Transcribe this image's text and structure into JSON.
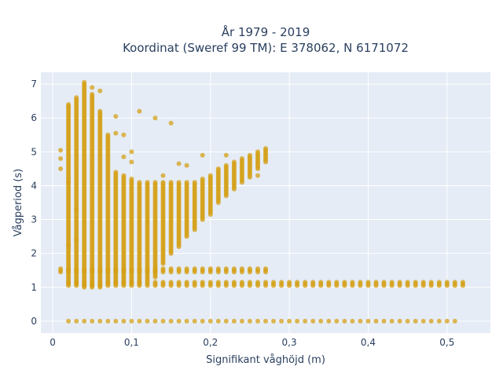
{
  "chart_data": {
    "type": "scatter",
    "title_line1": "År 1979 - 2019",
    "title_line2": "Koordinat (Sweref 99 TM): E 378062, N 6171072",
    "xlabel": "Signifikant våghöjd (m)",
    "ylabel": "Vågperiod (s)",
    "xlim": [
      -0.015,
      0.555
    ],
    "ylim": [
      -0.35,
      7.35
    ],
    "x_ticks": [
      0,
      0.1,
      0.2,
      0.3,
      0.4,
      0.5
    ],
    "x_tick_labels": [
      "0",
      "0,1",
      "0,2",
      "0,3",
      "0,4",
      "0,5"
    ],
    "y_ticks": [
      0,
      1,
      2,
      3,
      4,
      5,
      6,
      7
    ],
    "y_tick_labels": [
      "0",
      "1",
      "2",
      "3",
      "4",
      "5",
      "6",
      "7"
    ],
    "grid": true,
    "marker_color": "#d4a017",
    "plot_bgcolor": "#e5ecf6",
    "point_groups": [
      {
        "note": "zero-period row",
        "x_start": 0.02,
        "x_end": 0.51,
        "x_step": 0.01,
        "y": [
          0.0
        ]
      },
      {
        "note": "low-period band",
        "x_start": 0.01,
        "x_end": 0.27,
        "x_step": 0.01,
        "y": [
          1.45,
          1.5,
          1.55
        ]
      },
      {
        "note": "short-period band",
        "x_start": 0.02,
        "x_end": 0.52,
        "x_step": 0.01,
        "y": [
          1.05,
          1.1,
          1.15
        ]
      },
      {
        "note": "main cluster",
        "columns": [
          {
            "x": 0.02,
            "y_min": 1.1,
            "y_max": 6.4
          },
          {
            "x": 0.03,
            "y_min": 1.1,
            "y_max": 6.6
          },
          {
            "x": 0.04,
            "y_min": 1.0,
            "y_max": 7.0
          },
          {
            "x": 0.05,
            "y_min": 1.0,
            "y_max": 6.7
          },
          {
            "x": 0.06,
            "y_min": 1.0,
            "y_max": 6.2
          },
          {
            "x": 0.07,
            "y_min": 1.1,
            "y_max": 5.5
          },
          {
            "x": 0.08,
            "y_min": 1.1,
            "y_max": 4.4
          },
          {
            "x": 0.09,
            "y_min": 1.1,
            "y_max": 4.3
          },
          {
            "x": 0.1,
            "y_min": 1.1,
            "y_max": 4.2
          },
          {
            "x": 0.11,
            "y_min": 1.1,
            "y_max": 4.1
          },
          {
            "x": 0.12,
            "y_min": 1.2,
            "y_max": 4.1
          },
          {
            "x": 0.13,
            "y_min": 1.3,
            "y_max": 4.1
          },
          {
            "x": 0.14,
            "y_min": 1.7,
            "y_max": 4.1
          },
          {
            "x": 0.15,
            "y_min": 2.0,
            "y_max": 4.1
          },
          {
            "x": 0.16,
            "y_min": 2.2,
            "y_max": 4.1
          },
          {
            "x": 0.17,
            "y_min": 2.5,
            "y_max": 4.1
          },
          {
            "x": 0.18,
            "y_min": 2.7,
            "y_max": 4.1
          },
          {
            "x": 0.19,
            "y_min": 3.0,
            "y_max": 4.2
          },
          {
            "x": 0.2,
            "y_min": 3.2,
            "y_max": 4.3
          },
          {
            "x": 0.21,
            "y_min": 3.5,
            "y_max": 4.5
          },
          {
            "x": 0.22,
            "y_min": 3.7,
            "y_max": 4.6
          },
          {
            "x": 0.23,
            "y_min": 3.9,
            "y_max": 4.7
          },
          {
            "x": 0.24,
            "y_min": 4.1,
            "y_max": 4.8
          },
          {
            "x": 0.25,
            "y_min": 4.3,
            "y_max": 4.9
          },
          {
            "x": 0.26,
            "y_min": 4.5,
            "y_max": 5.0
          },
          {
            "x": 0.27,
            "y_min": 4.7,
            "y_max": 5.1
          }
        ]
      },
      {
        "note": "scattered outliers",
        "points": [
          [
            0.01,
            4.5
          ],
          [
            0.01,
            4.8
          ],
          [
            0.01,
            5.05
          ],
          [
            0.02,
            4.1
          ],
          [
            0.02,
            2.25
          ],
          [
            0.03,
            2.4
          ],
          [
            0.03,
            3.3
          ],
          [
            0.04,
            7.05
          ],
          [
            0.05,
            6.9
          ],
          [
            0.06,
            6.8
          ],
          [
            0.08,
            6.05
          ],
          [
            0.08,
            5.55
          ],
          [
            0.09,
            5.5
          ],
          [
            0.09,
            4.85
          ],
          [
            0.1,
            4.7
          ],
          [
            0.1,
            5.0
          ],
          [
            0.11,
            6.2
          ],
          [
            0.13,
            6.0
          ],
          [
            0.15,
            5.85
          ],
          [
            0.14,
            4.3
          ],
          [
            0.16,
            4.65
          ],
          [
            0.17,
            4.6
          ],
          [
            0.19,
            4.9
          ],
          [
            0.2,
            3.15
          ],
          [
            0.22,
            4.9
          ],
          [
            0.25,
            4.25
          ],
          [
            0.26,
            4.3
          ]
        ]
      }
    ]
  }
}
